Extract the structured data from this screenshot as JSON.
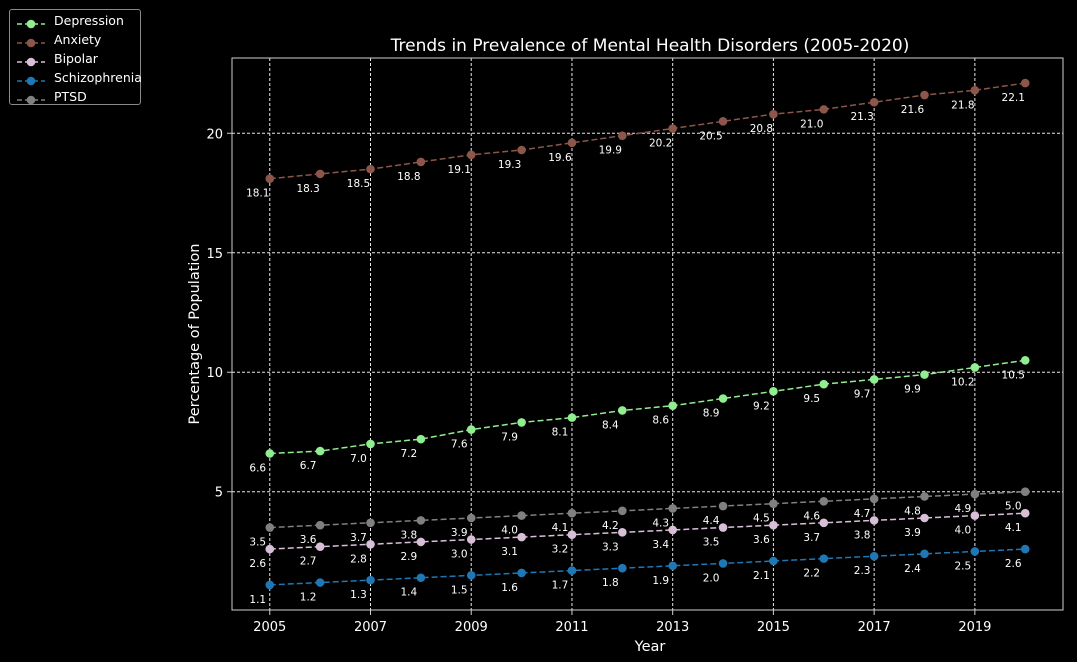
{
  "chart_data": {
    "type": "line",
    "title": "Trends in Prevalence of Mental Health Disorders (2005-2020)",
    "xlabel": "Year",
    "ylabel": "Percentage of Population",
    "x": [
      2005,
      2006,
      2007,
      2008,
      2009,
      2010,
      2011,
      2012,
      2013,
      2014,
      2015,
      2016,
      2017,
      2018,
      2019,
      2020
    ],
    "xticks": [
      "2005",
      "2007",
      "2009",
      "2011",
      "2013",
      "2015",
      "2017",
      "2019"
    ],
    "yticks": [
      "5",
      "10",
      "15",
      "20"
    ],
    "xlim": [
      2004.25,
      2020.75
    ],
    "ylim": [
      0.05,
      23.15
    ],
    "grid": true,
    "legend_position": "top-left outside",
    "series": [
      {
        "name": "Depression",
        "color": "#90ee90",
        "values": [
          6.6,
          6.7,
          7.0,
          7.2,
          7.6,
          7.9,
          8.1,
          8.4,
          8.6,
          8.9,
          9.2,
          9.5,
          9.7,
          9.9,
          10.2,
          10.5
        ]
      },
      {
        "name": "Anxiety",
        "color": "#8c564b",
        "values": [
          18.1,
          18.3,
          18.5,
          18.8,
          19.1,
          19.3,
          19.6,
          19.9,
          20.2,
          20.5,
          20.8,
          21.0,
          21.3,
          21.6,
          21.8,
          22.1
        ]
      },
      {
        "name": "Bipolar",
        "color": "#d8bfd8",
        "values": [
          2.6,
          2.7,
          2.8,
          2.9,
          3.0,
          3.1,
          3.2,
          3.3,
          3.4,
          3.5,
          3.6,
          3.7,
          3.8,
          3.9,
          4.0,
          4.1
        ]
      },
      {
        "name": "Schizophrenia",
        "color": "#1f77b4",
        "values": [
          1.1,
          1.2,
          1.3,
          1.4,
          1.5,
          1.6,
          1.7,
          1.8,
          1.9,
          2.0,
          2.1,
          2.2,
          2.3,
          2.4,
          2.5,
          2.6
        ]
      },
      {
        "name": "PTSD",
        "color": "#808080",
        "values": [
          3.5,
          3.6,
          3.7,
          3.8,
          3.9,
          4.0,
          4.1,
          4.2,
          4.3,
          4.4,
          4.5,
          4.6,
          4.7,
          4.8,
          4.9,
          5.0
        ]
      }
    ]
  }
}
